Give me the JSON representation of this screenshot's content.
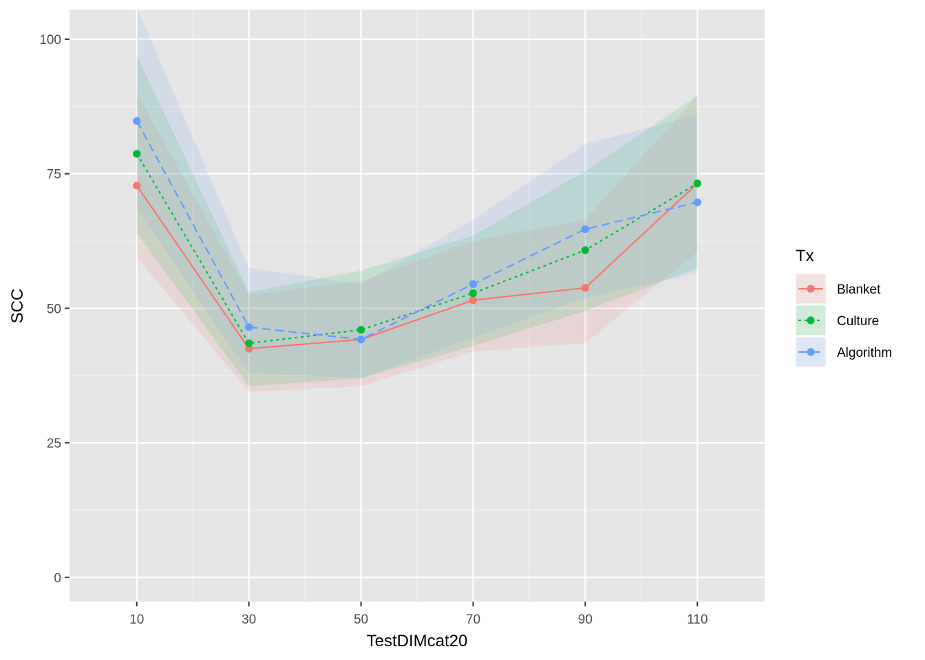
{
  "chart_data": {
    "type": "line",
    "title": "",
    "xlabel": "TestDIMcat20",
    "ylabel": "SCC",
    "x": [
      10,
      30,
      50,
      70,
      90,
      110
    ],
    "xticks": [
      "10",
      "30",
      "50",
      "70",
      "90",
      "110"
    ],
    "yticks": [
      "0",
      "25",
      "50",
      "75",
      "100"
    ],
    "xlim": [
      -2,
      122
    ],
    "ylim": [
      -4.5,
      105.5
    ],
    "grid": true,
    "legend": {
      "title": "Tx",
      "placement": "right"
    },
    "series": [
      {
        "name": "Blanket",
        "color": "#F8766D",
        "line_style": "solid",
        "values": [
          72.8,
          42.5,
          44.2,
          51.5,
          53.8,
          73.2
        ],
        "ribbon_low": [
          59.5,
          34.5,
          35.5,
          42.0,
          43.5,
          60.5
        ],
        "ribbon_high": [
          90.0,
          52.5,
          55.0,
          62.5,
          66.5,
          89.5
        ]
      },
      {
        "name": "Culture",
        "color": "#00BA38",
        "line_style": "dotted",
        "values": [
          78.7,
          43.5,
          46.0,
          52.8,
          60.8,
          73.2
        ],
        "ribbon_low": [
          64.0,
          35.5,
          37.0,
          43.0,
          49.5,
          57.5
        ],
        "ribbon_high": [
          97.0,
          53.0,
          57.0,
          63.5,
          75.5,
          89.5
        ]
      },
      {
        "name": "Algorithm",
        "color": "#619CFF",
        "line_style": "dashed",
        "values": [
          84.8,
          46.5,
          44.2,
          54.5,
          64.7,
          69.7
        ],
        "ribbon_low": [
          68.5,
          38.0,
          37.0,
          44.5,
          52.0,
          56.5
        ],
        "ribbon_high": [
          106.0,
          57.5,
          54.5,
          66.5,
          80.5,
          86.0
        ]
      }
    ]
  }
}
